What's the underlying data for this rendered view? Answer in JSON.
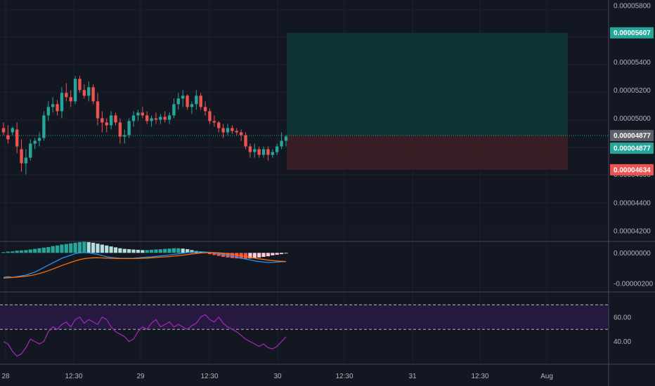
{
  "colors": {
    "background": "#131722",
    "grid": "#1e222d",
    "separator": "#434651",
    "up": "#26a69a",
    "down": "#ef5350",
    "macd_line": "#2196f3",
    "signal_line": "#ff6d00",
    "rsi_line": "#9c27b0",
    "target_zone": "#0f3538",
    "stop_zone": "#3d1f25",
    "current_tag": "#5d606b"
  },
  "chart_data": [
    {
      "type": "candlestick",
      "panel": "price",
      "y_ticks": [
        "0.00005800",
        "0.00005600",
        "0.00005400",
        "0.00005200",
        "0.00005000",
        "0.00004800",
        "0.00004600",
        "0.00004400",
        "0.00004200"
      ],
      "ylim": [
        4.13e-05,
        5.84e-05
      ],
      "candles": [
        [
          0,
          4.93,
          4.97,
          4.88,
          4.9
        ],
        [
          1,
          4.88,
          4.95,
          4.82,
          4.85
        ],
        [
          2,
          4.9,
          4.94,
          4.88,
          4.93
        ],
        [
          3,
          4.92,
          4.97,
          4.75,
          4.8
        ],
        [
          4,
          4.78,
          4.85,
          4.62,
          4.68
        ],
        [
          5,
          4.68,
          4.78,
          4.6,
          4.72
        ],
        [
          6,
          4.72,
          4.85,
          4.7,
          4.82
        ],
        [
          7,
          4.82,
          4.86,
          4.78,
          4.84
        ],
        [
          8,
          4.84,
          4.9,
          4.8,
          4.86
        ],
        [
          9,
          4.86,
          5.05,
          4.84,
          5.02
        ],
        [
          10,
          5.02,
          5.12,
          4.98,
          5.08
        ],
        [
          11,
          5.08,
          5.15,
          5.04,
          5.1
        ],
        [
          12,
          5.1,
          5.13,
          5.02,
          5.05
        ],
        [
          13,
          5.05,
          5.22,
          5.0,
          5.18
        ],
        [
          14,
          5.18,
          5.25,
          5.12,
          5.15
        ],
        [
          15,
          5.15,
          5.2,
          5.08,
          5.12
        ],
        [
          16,
          5.12,
          5.3,
          5.1,
          5.28
        ],
        [
          17,
          5.28,
          5.3,
          5.18,
          5.2
        ],
        [
          18,
          5.2,
          5.24,
          5.14,
          5.16
        ],
        [
          19,
          5.16,
          5.26,
          5.12,
          5.22
        ],
        [
          20,
          5.22,
          5.24,
          5.1,
          5.12
        ],
        [
          21,
          5.12,
          5.18,
          4.95,
          5.0
        ],
        [
          22,
          5.0,
          5.05,
          4.9,
          4.97
        ],
        [
          23,
          4.97,
          5.0,
          4.9,
          4.95
        ],
        [
          24,
          4.95,
          5.05,
          4.92,
          5.02
        ],
        [
          25,
          5.02,
          5.04,
          4.95,
          4.97
        ],
        [
          26,
          4.97,
          5.0,
          4.82,
          4.87
        ],
        [
          27,
          4.87,
          4.92,
          4.82,
          4.88
        ],
        [
          28,
          4.88,
          5.0,
          4.86,
          4.98
        ],
        [
          29,
          4.98,
          5.05,
          4.94,
          5.02
        ],
        [
          30,
          5.02,
          5.06,
          4.98,
          5.04
        ],
        [
          31,
          5.04,
          5.08,
          5.0,
          5.02
        ],
        [
          32,
          5.02,
          5.05,
          4.96,
          4.98
        ],
        [
          33,
          4.98,
          5.02,
          4.94,
          5.0
        ],
        [
          34,
          5.0,
          5.04,
          4.96,
          4.99
        ],
        [
          35,
          4.99,
          5.03,
          4.96,
          5.01
        ],
        [
          36,
          5.01,
          5.05,
          4.97,
          4.99
        ],
        [
          37,
          4.99,
          5.04,
          4.96,
          5.02
        ],
        [
          38,
          5.02,
          5.14,
          5.0,
          5.1
        ],
        [
          39,
          5.1,
          5.18,
          5.06,
          5.14
        ],
        [
          40,
          5.14,
          5.2,
          5.08,
          5.16
        ],
        [
          41,
          5.16,
          5.17,
          5.06,
          5.08
        ],
        [
          42,
          5.08,
          5.12,
          5.03,
          5.1
        ],
        [
          43,
          5.1,
          5.2,
          5.06,
          5.16
        ],
        [
          44,
          5.16,
          5.18,
          5.06,
          5.08
        ],
        [
          45,
          5.08,
          5.12,
          5.02,
          5.05
        ],
        [
          46,
          5.05,
          5.07,
          4.96,
          4.98
        ],
        [
          47,
          4.98,
          5.02,
          4.94,
          4.97
        ],
        [
          48,
          4.97,
          4.98,
          4.9,
          4.93
        ],
        [
          49,
          4.93,
          4.96,
          4.86,
          4.9
        ],
        [
          50,
          4.9,
          4.96,
          4.88,
          4.93
        ],
        [
          51,
          4.93,
          4.95,
          4.89,
          4.91
        ],
        [
          52,
          4.91,
          4.93,
          4.88,
          4.9
        ],
        [
          53,
          4.9,
          4.92,
          4.84,
          4.88
        ],
        [
          54,
          4.88,
          4.9,
          4.78,
          4.8
        ],
        [
          55,
          4.8,
          4.82,
          4.72,
          4.76
        ],
        [
          56,
          4.76,
          4.82,
          4.72,
          4.78
        ],
        [
          57,
          4.78,
          4.8,
          4.72,
          4.74
        ],
        [
          58,
          4.74,
          4.8,
          4.72,
          4.78
        ],
        [
          59,
          4.78,
          4.8,
          4.7,
          4.74
        ],
        [
          60,
          4.74,
          4.78,
          4.72,
          4.76
        ],
        [
          61,
          4.76,
          4.82,
          4.74,
          4.8
        ],
        [
          62,
          4.8,
          4.9,
          4.78,
          4.84
        ],
        [
          63,
          4.84,
          4.88,
          4.8,
          4.87
        ]
      ],
      "current_price": "0.00004877",
      "position": {
        "entry": "0.00004877",
        "target": "0.00005607",
        "stop": "0.00004634",
        "entry_value": 4.877,
        "target_value": 5.607,
        "stop_value": 4.634
      }
    },
    {
      "type": "macd",
      "panel": "macd",
      "y_ticks": [
        "0.00000000",
        "-0.00000200"
      ],
      "histogram": [
        0.05,
        0.08,
        0.1,
        0.14,
        0.16,
        0.18,
        0.22,
        0.26,
        0.3,
        0.34,
        0.38,
        0.44,
        0.48,
        0.54,
        0.58,
        0.62,
        0.66,
        0.7,
        0.72,
        0.7,
        0.66,
        0.6,
        0.54,
        0.48,
        0.42,
        0.36,
        0.3,
        0.26,
        0.24,
        0.22,
        0.2,
        0.18,
        0.18,
        0.2,
        0.22,
        0.24,
        0.26,
        0.28,
        0.3,
        0.3,
        0.28,
        0.24,
        0.18,
        0.12,
        0.06,
        -0.02,
        -0.08,
        -0.14,
        -0.2,
        -0.26,
        -0.3,
        -0.34,
        -0.36,
        -0.38,
        -0.38,
        -0.36,
        -0.34,
        -0.3,
        -0.26,
        -0.22,
        -0.16,
        -0.12,
        -0.08,
        -0.04
      ],
      "macd": [
        -1.6,
        -1.55,
        -1.6,
        -1.55,
        -1.5,
        -1.45,
        -1.35,
        -1.25,
        -1.1,
        -0.95,
        -0.8,
        -0.65,
        -0.5,
        -0.35,
        -0.25,
        -0.15,
        -0.05,
        0.0,
        0.02,
        0.0,
        -0.05,
        -0.1,
        -0.18,
        -0.25,
        -0.3,
        -0.33,
        -0.35,
        -0.36,
        -0.36,
        -0.35,
        -0.33,
        -0.3,
        -0.28,
        -0.26,
        -0.23,
        -0.2,
        -0.17,
        -0.14,
        -0.1,
        -0.06,
        -0.02,
        0.02,
        0.05,
        0.07,
        0.07,
        0.06,
        0.03,
        0.0,
        -0.05,
        -0.1,
        -0.16,
        -0.22,
        -0.28,
        -0.34,
        -0.4,
        -0.46,
        -0.52,
        -0.56,
        -0.6,
        -0.62,
        -0.62,
        -0.6,
        -0.58,
        -0.56
      ],
      "signal": [
        -1.65,
        -1.62,
        -1.6,
        -1.58,
        -1.55,
        -1.52,
        -1.48,
        -1.42,
        -1.35,
        -1.26,
        -1.16,
        -1.05,
        -0.94,
        -0.82,
        -0.72,
        -0.62,
        -0.52,
        -0.44,
        -0.38,
        -0.34,
        -0.32,
        -0.32,
        -0.33,
        -0.34,
        -0.35,
        -0.36,
        -0.37,
        -0.37,
        -0.37,
        -0.37,
        -0.36,
        -0.35,
        -0.34,
        -0.32,
        -0.3,
        -0.28,
        -0.26,
        -0.24,
        -0.21,
        -0.18,
        -0.15,
        -0.11,
        -0.07,
        -0.04,
        -0.01,
        0.01,
        0.02,
        0.02,
        0.01,
        -0.02,
        -0.05,
        -0.09,
        -0.14,
        -0.19,
        -0.24,
        -0.29,
        -0.34,
        -0.39,
        -0.43,
        -0.47,
        -0.5,
        -0.53,
        -0.55,
        -0.56
      ],
      "ylim": [
        -2.5,
        0.7
      ]
    },
    {
      "type": "rsi",
      "panel": "rsi",
      "y_ticks": [
        "60.00",
        "40.00"
      ],
      "upper_band": 70,
      "lower_band": 50,
      "ylim": [
        22,
        80
      ],
      "values": [
        40,
        38,
        32,
        28,
        30,
        35,
        42,
        40,
        38,
        40,
        48,
        52,
        50,
        54,
        56,
        52,
        58,
        60,
        55,
        58,
        56,
        54,
        60,
        58,
        52,
        48,
        46,
        44,
        40,
        42,
        48,
        52,
        50,
        55,
        58,
        52,
        54,
        56,
        52,
        54,
        52,
        50,
        53,
        55,
        60,
        62,
        58,
        56,
        60,
        55,
        52,
        50,
        48,
        45,
        42,
        40,
        38,
        36,
        38,
        35,
        34,
        36,
        40,
        44
      ]
    }
  ],
  "x_axis": {
    "labels": [
      "28",
      "12:30",
      "29",
      "12:30",
      "30",
      "12:30",
      "31",
      "12:30",
      "Aug"
    ]
  }
}
